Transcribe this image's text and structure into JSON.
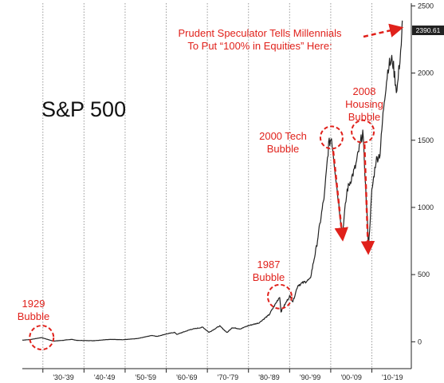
{
  "chart_data": {
    "type": "line",
    "title": "S&P 500",
    "xlabel": "",
    "ylabel": "",
    "y_axis_side": "right",
    "ylim": [
      -200,
      2520
    ],
    "xlim": [
      1925.0,
      2019.6
    ],
    "grid": "vertical dotted lines at decade boundaries",
    "y_ticks": [
      0,
      500,
      1000,
      1500,
      2000,
      2500
    ],
    "y_tick_labels": [
      "0",
      "500",
      "1000",
      "1500",
      "2000",
      "2500"
    ],
    "x_ticks": [
      1930,
      1940,
      1950,
      1960,
      1970,
      1980,
      1990,
      2000,
      2010
    ],
    "x_tick_labels": [
      "'30-'39",
      "'40-'49",
      "'50-'59",
      "'60-'69",
      "'70-'79",
      "'80-'89",
      "'90-'99",
      "'00-'09",
      "'10-'19"
    ],
    "last_value_label": "2390.61",
    "series": [
      {
        "color": "#222222",
        "x": [
          1925.0,
          1927.0,
          1929.7,
          1932.5,
          1935.0,
          1937.0,
          1938.3,
          1942.3,
          1946.4,
          1949.5,
          1953.0,
          1956.5,
          1957.8,
          1960.0,
          1962.0,
          1962.6,
          1966.0,
          1968.9,
          1970.4,
          1973.0,
          1974.8,
          1976.0,
          1978.0,
          1980.0,
          1982.5,
          1985.0,
          1987.6,
          1987.9,
          1990.0,
          1990.8,
          1992.0,
          1995.0,
          1996.5,
          1998.5,
          1999.5,
          2000.2,
          2001.5,
          2002.8,
          2004.0,
          2006.0,
          2007.8,
          2008.9,
          2009.2,
          2010.0,
          2011.0,
          2012.0,
          2013.0,
          2014.0,
          2015.0,
          2016.1,
          2017.3,
          2017.4
        ],
        "values": [
          12,
          17,
          31,
          5,
          11,
          18,
          10,
          8,
          18,
          15,
          24,
          47,
          40,
          58,
          70,
          55,
          92,
          108,
          70,
          118,
          68,
          105,
          96,
          120,
          140,
          200,
          336,
          224,
          340,
          300,
          420,
          465,
          700,
          1100,
          1469,
          1520,
          1150,
          800,
          1130,
          1300,
          1565,
          900,
          700,
          1120,
          1350,
          1400,
          1800,
          2050,
          2100,
          1860,
          2270,
          2390.61
        ]
      }
    ],
    "annotations": [
      {
        "text": "1929\nBubble",
        "x": 1929.7,
        "y": 31
      },
      {
        "text": "1987\nBubble",
        "x": 1987.6,
        "y": 336
      },
      {
        "text": "2000 Tech\nBubble",
        "x": 2000.2,
        "y": 1520
      },
      {
        "text": "2008\nHousing\nBubble",
        "x": 2007.8,
        "y": 1565
      },
      {
        "text": "Prudent Speculator Tells Millennials\nTo Put “100% in Equities” Here:",
        "x": 2017.4,
        "y": 2390.61
      }
    ]
  }
}
